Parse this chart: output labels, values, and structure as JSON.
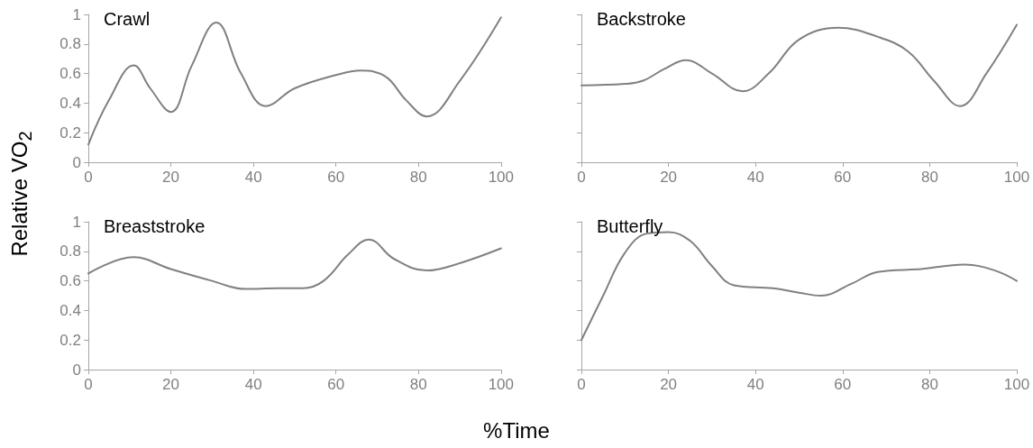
{
  "chart_data": [
    {
      "type": "line",
      "title": "Crawl",
      "ylabel": "Relative VO$_{2}$",
      "x": [
        0,
        5,
        11,
        15,
        20,
        25,
        31,
        37,
        43,
        50,
        60,
        66,
        72,
        77,
        82,
        90,
        100
      ],
      "series": [
        {
          "color": "#808080",
          "values": [
            0.12,
            0.42,
            0.655,
            0.5,
            0.34,
            0.65,
            0.945,
            0.6,
            0.38,
            0.5,
            0.59,
            0.62,
            0.58,
            0.42,
            0.31,
            0.55,
            0.98
          ]
        }
      ],
      "xlim": [
        0,
        100
      ],
      "xticks": [
        0,
        20,
        40,
        60,
        80,
        100
      ],
      "ylim": [
        0,
        1
      ],
      "yticks": [
        0,
        0.2,
        0.4,
        0.6,
        0.8,
        1
      ]
    },
    {
      "type": "line",
      "title": "Backstroke",
      "x": [
        0,
        10,
        14,
        19,
        24,
        30,
        37,
        43,
        50,
        59,
        68,
        75,
        81,
        87,
        93,
        100
      ],
      "series": [
        {
          "color": "#808080",
          "values": [
            0.52,
            0.53,
            0.55,
            0.63,
            0.69,
            0.6,
            0.48,
            0.6,
            0.83,
            0.91,
            0.85,
            0.75,
            0.55,
            0.38,
            0.6,
            0.93
          ]
        }
      ],
      "xlim": [
        0,
        100
      ],
      "xticks": [
        0,
        20,
        40,
        60,
        80,
        100
      ],
      "ylim": [
        0,
        1
      ],
      "yticks": [
        0,
        0.2,
        0.4,
        0.6,
        0.8,
        1
      ],
      "tick_labels": "x"
    },
    {
      "type": "line",
      "title": "Breaststroke",
      "xlabel": "%Time",
      "x": [
        0,
        11,
        20,
        30,
        38,
        46,
        52,
        57,
        63,
        68,
        74,
        82,
        90,
        100
      ],
      "series": [
        {
          "color": "#808080",
          "values": [
            0.65,
            0.76,
            0.68,
            0.6,
            0.545,
            0.55,
            0.55,
            0.6,
            0.78,
            0.88,
            0.75,
            0.67,
            0.72,
            0.82
          ]
        }
      ],
      "xlim": [
        0,
        100
      ],
      "xticks": [
        0,
        20,
        40,
        60,
        80,
        100
      ],
      "ylim": [
        0,
        1
      ],
      "yticks": [
        0,
        0.2,
        0.4,
        0.6,
        0.8,
        1
      ]
    },
    {
      "type": "line",
      "title": "Butterfly",
      "x": [
        0,
        5,
        10,
        15,
        20,
        25,
        30,
        35,
        44,
        50,
        55,
        62,
        68,
        78,
        88,
        95,
        100
      ],
      "series": [
        {
          "color": "#808080",
          "values": [
            0.2,
            0.5,
            0.79,
            0.92,
            0.93,
            0.87,
            0.7,
            0.57,
            0.55,
            0.52,
            0.5,
            0.58,
            0.66,
            0.68,
            0.71,
            0.67,
            0.6
          ]
        }
      ],
      "xlim": [
        0,
        100
      ],
      "xticks": [
        0,
        20,
        40,
        60,
        80,
        100
      ],
      "ylim": [
        0,
        1
      ],
      "yticks": [
        0,
        0.2,
        0.4,
        0.6,
        0.8,
        1
      ],
      "tick_labels": "x"
    }
  ]
}
